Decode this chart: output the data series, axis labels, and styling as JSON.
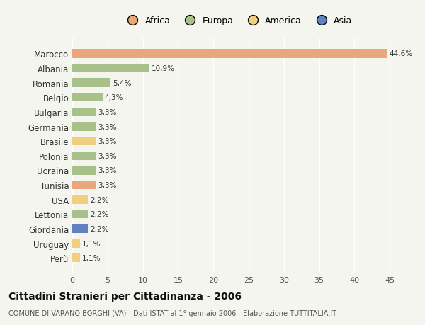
{
  "countries": [
    "Marocco",
    "Albania",
    "Romania",
    "Belgio",
    "Bulgaria",
    "Germania",
    "Brasile",
    "Polonia",
    "Ucraina",
    "Tunisia",
    "USA",
    "Lettonia",
    "Giordania",
    "Uruguay",
    "Perù"
  ],
  "values": [
    44.6,
    10.9,
    5.4,
    4.3,
    3.3,
    3.3,
    3.3,
    3.3,
    3.3,
    3.3,
    2.2,
    2.2,
    2.2,
    1.1,
    1.1
  ],
  "labels": [
    "44,6%",
    "10,9%",
    "5,4%",
    "4,3%",
    "3,3%",
    "3,3%",
    "3,3%",
    "3,3%",
    "3,3%",
    "3,3%",
    "2,2%",
    "2,2%",
    "2,2%",
    "1,1%",
    "1,1%"
  ],
  "continents": [
    "Africa",
    "Europa",
    "Europa",
    "Europa",
    "Europa",
    "Europa",
    "America",
    "Europa",
    "Europa",
    "Africa",
    "America",
    "Europa",
    "Asia",
    "America",
    "America"
  ],
  "colors": {
    "Africa": "#E8A87C",
    "Europa": "#A8C08A",
    "America": "#F0D080",
    "Asia": "#6080C0"
  },
  "legend_order": [
    "Africa",
    "Europa",
    "America",
    "Asia"
  ],
  "legend_colors": [
    "#E8A87C",
    "#A8C08A",
    "#F0D080",
    "#6080C0"
  ],
  "title": "Cittadini Stranieri per Cittadinanza - 2006",
  "subtitle": "COMUNE DI VARANO BORGHI (VA) - Dati ISTAT al 1° gennaio 2006 - Elaborazione TUTTITALIA.IT",
  "xlim": [
    0,
    47
  ],
  "xticks": [
    0,
    5,
    10,
    15,
    20,
    25,
    30,
    35,
    40,
    45
  ],
  "background_color": "#F5F5F0",
  "grid_color": "#FFFFFF",
  "bar_height": 0.6
}
